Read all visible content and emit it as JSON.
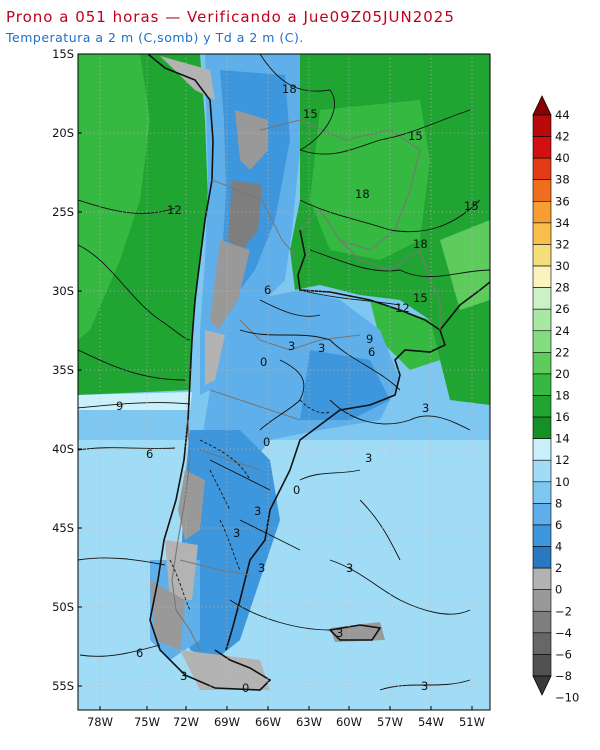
{
  "header": {
    "title": "Prono a 051 horas — Verificando a Jue09Z05JUN2025",
    "subtitle": "Temperatura a 2 m (C,somb) y Td a 2 m (C)."
  },
  "map": {
    "lat_labels": [
      "15S",
      "20S",
      "25S",
      "30S",
      "35S",
      "40S",
      "45S",
      "50S",
      "55S"
    ],
    "lon_labels": [
      "78W",
      "75W",
      "72W",
      "69W",
      "66W",
      "63W",
      "60W",
      "57W",
      "54W",
      "51W"
    ],
    "contour_labels": [
      "18",
      "15",
      "15",
      "18",
      "15",
      "12",
      "18",
      "6",
      "12",
      "15",
      "9",
      "0",
      "6",
      "3",
      "3",
      "9",
      "3",
      "6",
      "0",
      "3",
      "0",
      "3",
      "3",
      "3",
      "3",
      "3",
      "6",
      "3",
      "0",
      "3"
    ]
  },
  "colorbar": {
    "levels": [
      "44",
      "42",
      "40",
      "38",
      "36",
      "34",
      "32",
      "30",
      "28",
      "26",
      "24",
      "22",
      "20",
      "18",
      "16",
      "14",
      "12",
      "10",
      "8",
      "6",
      "4",
      "2",
      "0",
      "−2",
      "−4",
      "−6",
      "−8",
      "−10"
    ],
    "colors": [
      "#b80a0a",
      "#d21010",
      "#e23c16",
      "#ef6f1e",
      "#f69e32",
      "#f8c04b",
      "#f6df7a",
      "#fbf3bd",
      "#cdf1c6",
      "#a8e8a2",
      "#86dd7f",
      "#5ecc5c",
      "#35b940",
      "#21a532",
      "#178f27",
      "#c9f0fb",
      "#a0dcf6",
      "#7ec7f1",
      "#5fb0ea",
      "#3e96dc",
      "#2879c2",
      "#b3b3b3",
      "#999999",
      "#7e7e7e",
      "#676767",
      "#515151"
    ]
  }
}
